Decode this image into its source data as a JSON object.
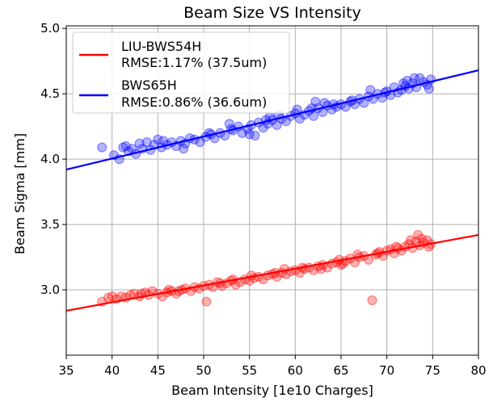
{
  "chart_data": {
    "type": "scatter",
    "title": "Beam Size VS Intensity",
    "xlabel": "Beam Intensity [1e10 Charges]",
    "ylabel": "Beam Sigma [mm]",
    "xlim": [
      35,
      80
    ],
    "ylim": [
      2.5,
      5.02
    ],
    "xticks": [
      35,
      40,
      45,
      50,
      55,
      60,
      65,
      70,
      75,
      80
    ],
    "yticks": [
      3.0,
      3.5,
      4.0,
      4.5,
      5.0
    ],
    "grid": true,
    "legend_position": "top-left",
    "series": [
      {
        "name": "LIU-BWS54H",
        "annotation": "RMSE:1.17% (37.5um)",
        "color": "#ff0000",
        "fit": {
          "x": [
            35,
            80
          ],
          "y": [
            2.84,
            3.42
          ]
        },
        "points": [
          [
            38.9,
            2.91
          ],
          [
            39.6,
            2.94
          ],
          [
            40.0,
            2.95
          ],
          [
            40.5,
            2.93
          ],
          [
            41.0,
            2.95
          ],
          [
            41.5,
            2.94
          ],
          [
            42.0,
            2.96
          ],
          [
            42.4,
            2.97
          ],
          [
            43.0,
            2.95
          ],
          [
            43.6,
            2.98
          ],
          [
            44.0,
            2.96
          ],
          [
            44.4,
            2.99
          ],
          [
            45.0,
            2.97
          ],
          [
            45.5,
            2.95
          ],
          [
            46.0,
            2.98
          ],
          [
            46.5,
            2.99
          ],
          [
            47.0,
            2.97
          ],
          [
            47.6,
            3.0
          ],
          [
            48.0,
            3.01
          ],
          [
            48.6,
            2.99
          ],
          [
            49.0,
            3.02
          ],
          [
            49.5,
            3.01
          ],
          [
            50.0,
            3.03
          ],
          [
            50.3,
            2.91
          ],
          [
            50.6,
            3.04
          ],
          [
            51.0,
            3.02
          ],
          [
            51.5,
            3.06
          ],
          [
            52.0,
            3.03
          ],
          [
            52.5,
            3.05
          ],
          [
            53.0,
            3.07
          ],
          [
            53.5,
            3.04
          ],
          [
            54.0,
            3.06
          ],
          [
            54.5,
            3.08
          ],
          [
            55.0,
            3.07
          ],
          [
            55.5,
            3.09
          ],
          [
            56.0,
            3.1
          ],
          [
            56.5,
            3.08
          ],
          [
            57.0,
            3.11
          ],
          [
            57.5,
            3.12
          ],
          [
            58.0,
            3.1
          ],
          [
            58.5,
            3.13
          ],
          [
            59.0,
            3.12
          ],
          [
            59.5,
            3.14
          ],
          [
            60.0,
            3.15
          ],
          [
            60.5,
            3.13
          ],
          [
            61.0,
            3.16
          ],
          [
            61.5,
            3.17
          ],
          [
            62.0,
            3.15
          ],
          [
            62.5,
            3.18
          ],
          [
            63.0,
            3.19
          ],
          [
            63.5,
            3.17
          ],
          [
            64.0,
            3.2
          ],
          [
            64.5,
            3.21
          ],
          [
            65.0,
            3.19
          ],
          [
            65.5,
            3.22
          ],
          [
            66.0,
            3.24
          ],
          [
            66.5,
            3.21
          ],
          [
            67.0,
            3.25
          ],
          [
            67.5,
            3.26
          ],
          [
            68.0,
            3.23
          ],
          [
            68.4,
            2.92
          ],
          [
            68.8,
            3.27
          ],
          [
            69.2,
            3.29
          ],
          [
            69.6,
            3.26
          ],
          [
            70.0,
            3.3
          ],
          [
            70.4,
            3.31
          ],
          [
            70.8,
            3.28
          ],
          [
            71.2,
            3.32
          ],
          [
            71.6,
            3.3
          ],
          [
            72.0,
            3.33
          ],
          [
            72.4,
            3.35
          ],
          [
            72.8,
            3.32
          ],
          [
            73.2,
            3.37
          ],
          [
            73.4,
            3.42
          ],
          [
            73.6,
            3.34
          ],
          [
            74.0,
            3.36
          ],
          [
            74.4,
            3.38
          ],
          [
            74.8,
            3.35
          ],
          [
            43.2,
            2.97
          ],
          [
            47.3,
            2.99
          ],
          [
            51.8,
            3.05
          ],
          [
            55.2,
            3.11
          ],
          [
            57.8,
            3.13
          ],
          [
            60.8,
            3.17
          ],
          [
            62.8,
            3.16
          ],
          [
            64.8,
            3.23
          ],
          [
            66.8,
            3.27
          ],
          [
            69.0,
            3.28
          ],
          [
            71.0,
            3.33
          ],
          [
            72.6,
            3.38
          ],
          [
            73.8,
            3.39
          ],
          [
            74.6,
            3.33
          ],
          [
            65.2,
            3.2
          ],
          [
            58.8,
            3.16
          ],
          [
            53.2,
            3.08
          ],
          [
            46.2,
            3.0
          ]
        ]
      },
      {
        "name": "BWS65H",
        "annotation": "RMSE:0.86% (36.6um)",
        "color": "#0000ff",
        "fit": {
          "x": [
            35,
            80
          ],
          "y": [
            3.92,
            4.68
          ]
        },
        "points": [
          [
            38.9,
            4.09
          ],
          [
            40.2,
            4.03
          ],
          [
            40.8,
            4.0
          ],
          [
            41.2,
            4.09
          ],
          [
            41.5,
            4.1
          ],
          [
            41.8,
            4.06
          ],
          [
            42.2,
            4.08
          ],
          [
            42.6,
            4.04
          ],
          [
            43.0,
            4.12
          ],
          [
            43.3,
            4.08
          ],
          [
            43.8,
            4.13
          ],
          [
            44.2,
            4.07
          ],
          [
            44.6,
            4.11
          ],
          [
            45.0,
            4.15
          ],
          [
            45.4,
            4.09
          ],
          [
            46.0,
            4.11
          ],
          [
            46.5,
            4.13
          ],
          [
            47.0,
            4.1
          ],
          [
            47.5,
            4.14
          ],
          [
            48.0,
            4.12
          ],
          [
            48.5,
            4.16
          ],
          [
            49.0,
            4.15
          ],
          [
            49.6,
            4.13
          ],
          [
            50.2,
            4.17
          ],
          [
            50.8,
            4.19
          ],
          [
            51.2,
            4.16
          ],
          [
            51.8,
            4.2
          ],
          [
            52.3,
            4.18
          ],
          [
            52.8,
            4.27
          ],
          [
            53.2,
            4.22
          ],
          [
            53.8,
            4.25
          ],
          [
            54.2,
            4.2
          ],
          [
            54.8,
            4.23
          ],
          [
            55.2,
            4.26
          ],
          [
            55.6,
            4.18
          ],
          [
            56.0,
            4.28
          ],
          [
            56.5,
            4.24
          ],
          [
            57.0,
            4.27
          ],
          [
            57.5,
            4.3
          ],
          [
            58.0,
            4.26
          ],
          [
            58.5,
            4.31
          ],
          [
            59.0,
            4.29
          ],
          [
            59.5,
            4.33
          ],
          [
            60.0,
            4.35
          ],
          [
            60.5,
            4.31
          ],
          [
            61.0,
            4.34
          ],
          [
            61.5,
            4.37
          ],
          [
            62.0,
            4.33
          ],
          [
            62.5,
            4.39
          ],
          [
            63.0,
            4.36
          ],
          [
            63.5,
            4.41
          ],
          [
            64.0,
            4.38
          ],
          [
            64.5,
            4.4
          ],
          [
            65.0,
            4.42
          ],
          [
            65.5,
            4.4
          ],
          [
            66.0,
            4.44
          ],
          [
            66.5,
            4.42
          ],
          [
            67.0,
            4.46
          ],
          [
            67.5,
            4.43
          ],
          [
            68.0,
            4.48
          ],
          [
            68.5,
            4.46
          ],
          [
            69.0,
            4.5
          ],
          [
            69.5,
            4.47
          ],
          [
            70.0,
            4.52
          ],
          [
            70.4,
            4.49
          ],
          [
            70.8,
            4.55
          ],
          [
            71.2,
            4.51
          ],
          [
            71.6,
            4.53
          ],
          [
            72.0,
            4.56
          ],
          [
            72.4,
            4.54
          ],
          [
            72.8,
            4.58
          ],
          [
            73.2,
            4.55
          ],
          [
            73.6,
            4.62
          ],
          [
            74.0,
            4.59
          ],
          [
            74.4,
            4.57
          ],
          [
            74.8,
            4.61
          ],
          [
            73.0,
            4.62
          ],
          [
            72.2,
            4.6
          ],
          [
            68.2,
            4.53
          ],
          [
            66.2,
            4.45
          ],
          [
            63.2,
            4.43
          ],
          [
            60.2,
            4.38
          ],
          [
            57.2,
            4.32
          ],
          [
            55.0,
            4.19
          ],
          [
            53.0,
            4.23
          ],
          [
            50.6,
            4.2
          ],
          [
            47.8,
            4.08
          ],
          [
            45.6,
            4.14
          ],
          [
            62.2,
            4.44
          ],
          [
            71.8,
            4.58
          ],
          [
            74.6,
            4.54
          ],
          [
            69.8,
            4.51
          ],
          [
            58.2,
            4.34
          ],
          [
            64.2,
            4.42
          ],
          [
            56.8,
            4.3
          ],
          [
            61.8,
            4.39
          ]
        ]
      }
    ]
  }
}
